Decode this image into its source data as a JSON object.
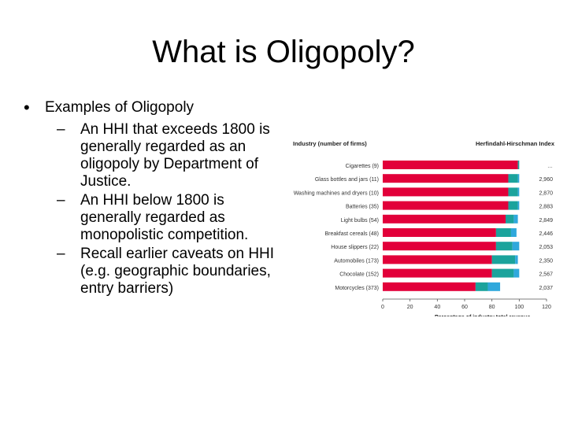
{
  "slide": {
    "title": "What is Oligopoly?",
    "bullet": "Examples of Oligopoly",
    "bullet_mark": "•",
    "sub_mark": "–",
    "sub_bullets": [
      "An HHI that exceeds 1800 is generally regarded as an oligopoly by Department of Justice.",
      "An HHI below 1800 is generally regarded as monopolistic competition.",
      "Recall earlier caveats on HHI (e.g. geographic boundaries, entry barriers)"
    ]
  },
  "chart_data": {
    "type": "bar",
    "orientation": "horizontal",
    "stacked": true,
    "left_header": "Industry (number of firms)",
    "right_header": "Herfindahl-Hirschman Index",
    "xlabel": "Percentage of industry total revenue",
    "xlim": [
      0,
      120
    ],
    "xticks": [
      0,
      20,
      40,
      60,
      80,
      100,
      120
    ],
    "grid": false,
    "legend": "none",
    "colors": [
      "#e2003a",
      "#1ba39c",
      "#2fa8dc"
    ],
    "categories": [
      "Cigarettes (9)",
      "Glass bottles and jars (11)",
      "Washing machines and dryers (10)",
      "Batteries (35)",
      "Light bulbs (54)",
      "Breakfast cereals (48)",
      "House slippers (22)",
      "Automobiles (173)",
      "Chocolate (152)",
      "Motorcycles (373)"
    ],
    "hhi": [
      "…",
      "2,960",
      "2,870",
      "2,883",
      "2,849",
      "2,446",
      "2,053",
      "2,350",
      "2,567",
      "2,037"
    ],
    "series": [
      {
        "values": [
          99,
          92,
          92,
          92,
          90,
          83,
          83,
          80,
          80,
          68
        ]
      },
      {
        "values": [
          1,
          7,
          7,
          7,
          6,
          11,
          12,
          17,
          16,
          9
        ]
      },
      {
        "values": [
          0,
          1,
          1,
          1,
          3,
          4,
          5,
          2,
          4,
          9
        ]
      }
    ]
  }
}
